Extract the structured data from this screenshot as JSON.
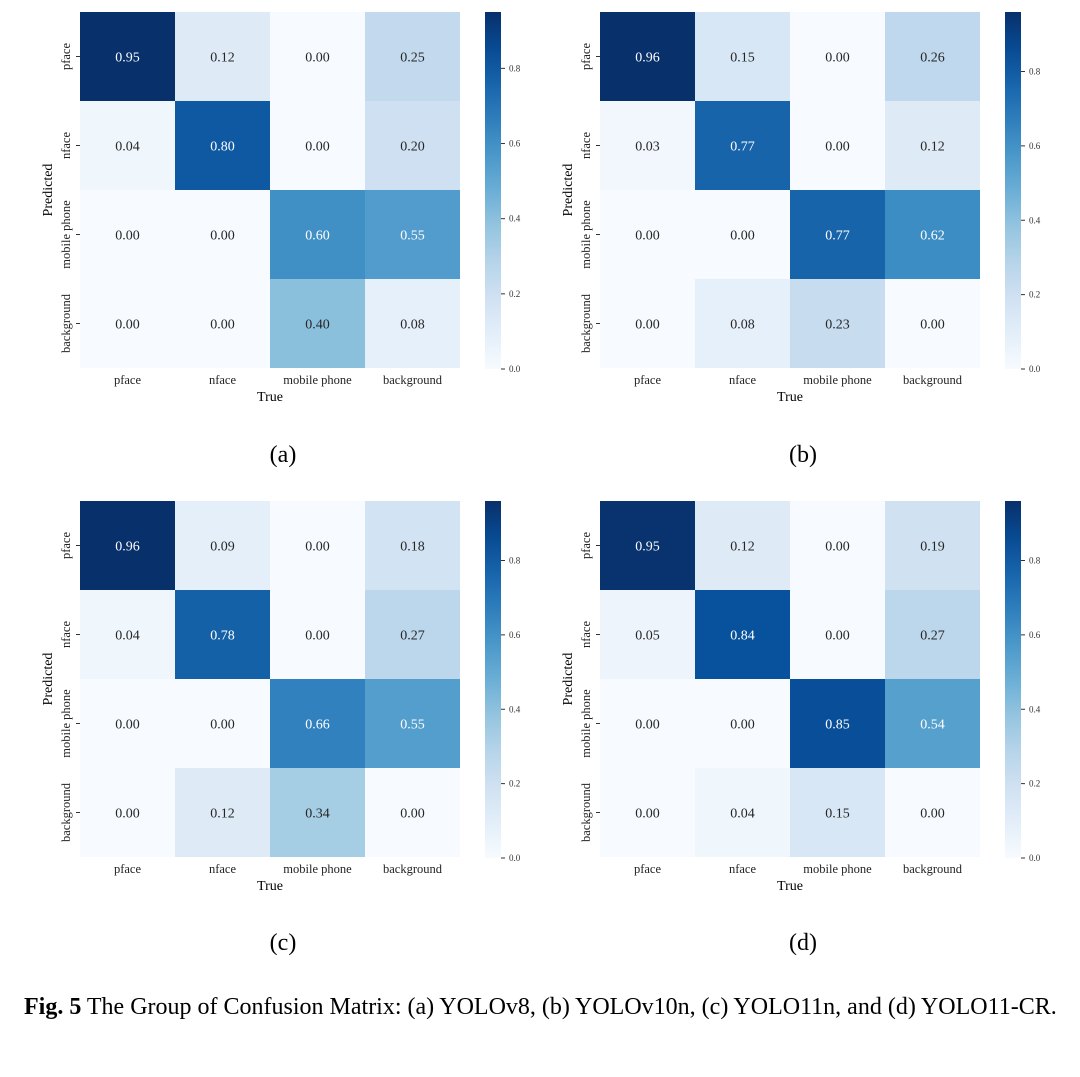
{
  "chart_data": [
    {
      "type": "heatmap",
      "panel_label": "(a)",
      "model": "YOLOv8",
      "row_categories": [
        "pface",
        "nface",
        "mobile phone",
        "background"
      ],
      "col_categories": [
        "pface",
        "nface",
        "mobile phone",
        "background"
      ],
      "values": [
        [
          0.95,
          0.12,
          0.0,
          0.25
        ],
        [
          0.04,
          0.8,
          0.0,
          0.2
        ],
        [
          0.0,
          0.0,
          0.6,
          0.55
        ],
        [
          0.0,
          0.0,
          0.4,
          0.08
        ]
      ],
      "xlabel": "True",
      "ylabel": "Predicted",
      "colorbar_range": [
        0,
        0.95
      ],
      "colorbar_ticks": [
        "0.0",
        "0.2",
        "0.4",
        "0.6",
        "0.8"
      ]
    },
    {
      "type": "heatmap",
      "panel_label": "(b)",
      "model": "YOLOv10n",
      "row_categories": [
        "pface",
        "nface",
        "mobile phone",
        "background"
      ],
      "col_categories": [
        "pface",
        "nface",
        "mobile phone",
        "background"
      ],
      "values": [
        [
          0.96,
          0.15,
          0.0,
          0.26
        ],
        [
          0.03,
          0.77,
          0.0,
          0.12
        ],
        [
          0.0,
          0.0,
          0.77,
          0.62
        ],
        [
          0.0,
          0.08,
          0.23,
          0.0
        ]
      ],
      "xlabel": "True",
      "ylabel": "Predicted",
      "colorbar_range": [
        0,
        0.96
      ],
      "colorbar_ticks": [
        "0.0",
        "0.2",
        "0.4",
        "0.6",
        "0.8"
      ]
    },
    {
      "type": "heatmap",
      "panel_label": "(c)",
      "model": "YOLO11n",
      "row_categories": [
        "pface",
        "nface",
        "mobile phone",
        "background"
      ],
      "col_categories": [
        "pface",
        "nface",
        "mobile phone",
        "background"
      ],
      "values": [
        [
          0.96,
          0.09,
          0.0,
          0.18
        ],
        [
          0.04,
          0.78,
          0.0,
          0.27
        ],
        [
          0.0,
          0.0,
          0.66,
          0.55
        ],
        [
          0.0,
          0.12,
          0.34,
          0.0
        ]
      ],
      "xlabel": "True",
      "ylabel": "Predicted",
      "colorbar_range": [
        0,
        0.96
      ],
      "colorbar_ticks": [
        "0.0",
        "0.2",
        "0.4",
        "0.6",
        "0.8"
      ]
    },
    {
      "type": "heatmap",
      "panel_label": "(d)",
      "model": "YOLO11-CR",
      "row_categories": [
        "pface",
        "nface",
        "mobile phone",
        "background"
      ],
      "col_categories": [
        "pface",
        "nface",
        "mobile phone",
        "background"
      ],
      "values": [
        [
          0.95,
          0.12,
          0.0,
          0.19
        ],
        [
          0.05,
          0.84,
          0.0,
          0.27
        ],
        [
          0.0,
          0.0,
          0.85,
          0.54
        ],
        [
          0.0,
          0.04,
          0.15,
          0.0
        ]
      ],
      "xlabel": "True",
      "ylabel": "Predicted",
      "colorbar_range": [
        0,
        0.96
      ],
      "colorbar_ticks": [
        "0.0",
        "0.2",
        "0.4",
        "0.6",
        "0.8"
      ]
    }
  ],
  "caption": {
    "fig_label": "Fig. 5",
    "text": " The Group of Confusion Matrix: (a) YOLOv8, (b) YOLOv10n, (c) YOLO11n, and (d) YOLO11-CR."
  },
  "colors": {
    "low": "#f7fbff",
    "high": "#08306b",
    "text_dark": "#262626",
    "text_light": "#ffffff"
  }
}
